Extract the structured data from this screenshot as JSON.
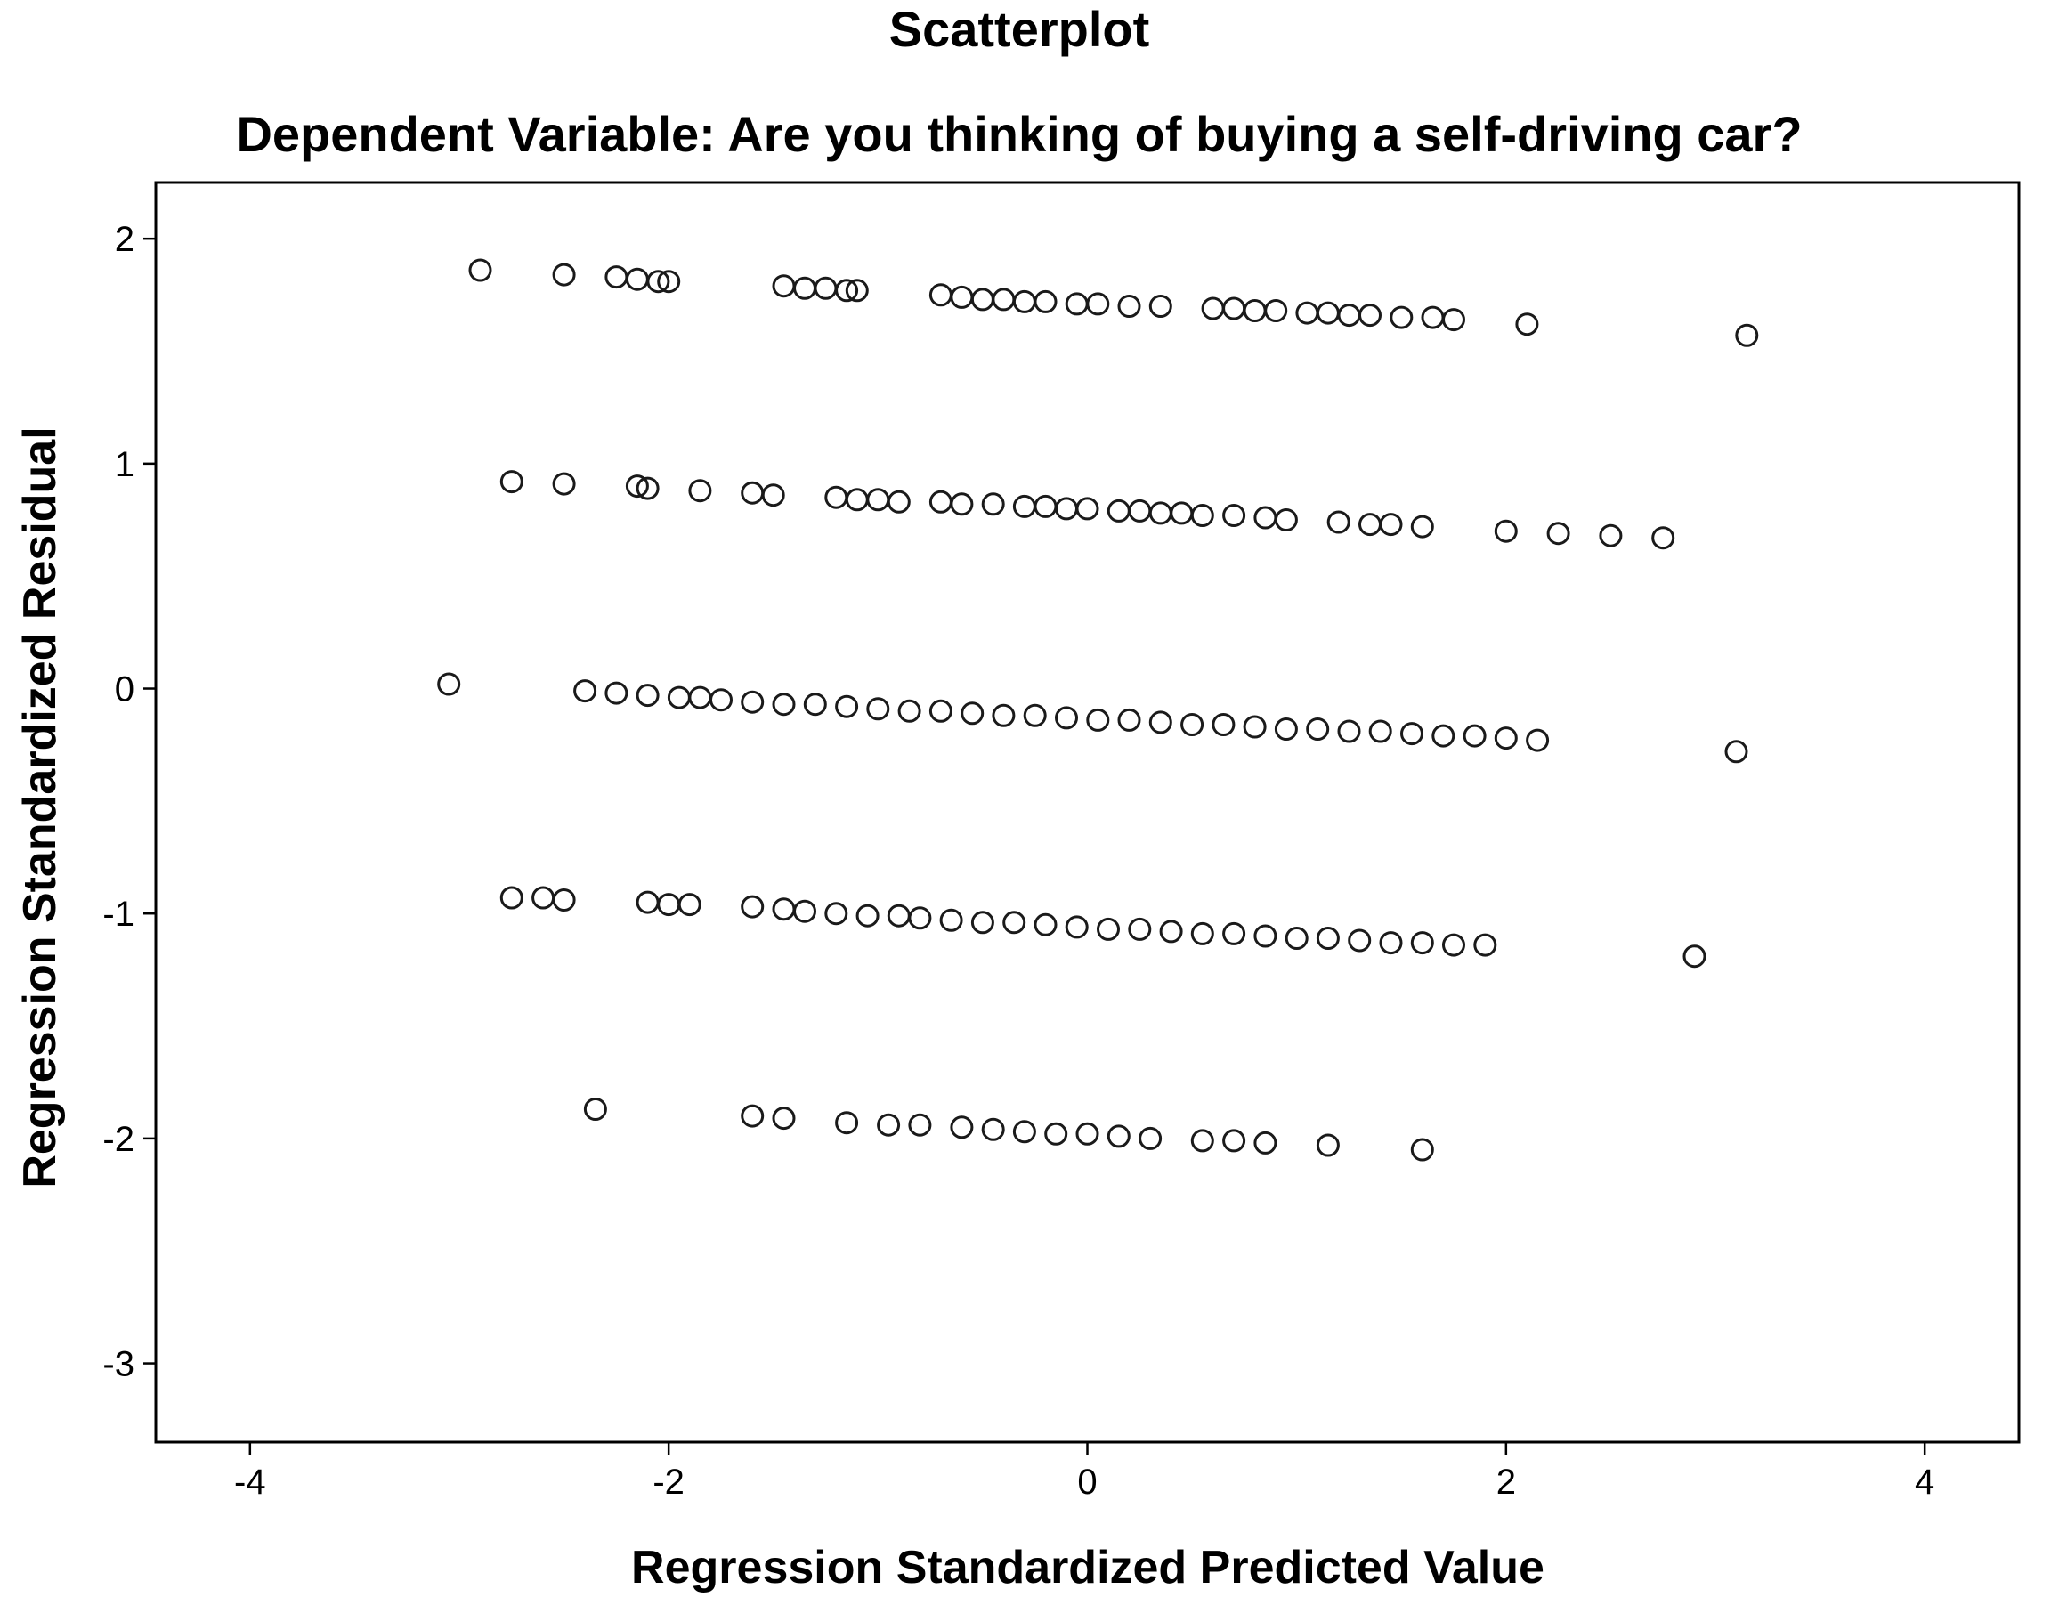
{
  "chart_data": {
    "type": "scatter",
    "title": "Scatterplot",
    "subtitle": "Dependent Variable: Are you thinking of buying a self-driving car?",
    "xlabel": "Regression Standardized Predicted Value",
    "ylabel": "Regression Standardized Residual",
    "xlim": [
      -4.45,
      4.45
    ],
    "ylim": [
      -3.35,
      2.25
    ],
    "xticks": [
      -4,
      -2,
      0,
      2,
      4
    ],
    "yticks": [
      2,
      1,
      0,
      -1,
      -2,
      -3
    ],
    "xtick_labels": [
      "-4",
      "-2",
      "0",
      "2",
      "4"
    ],
    "ytick_labels": [
      "2",
      "1",
      "0",
      "-1",
      "-2",
      "-3"
    ],
    "grid": false,
    "legend": "none",
    "marker": "hollow-circle",
    "marker_color": "#1a1a1a",
    "bands": [
      {
        "x": [
          -2.9,
          -2.5,
          -2.25,
          -2.15,
          -2.05,
          -2.0,
          -1.45,
          -1.35,
          -1.25,
          -1.15,
          -1.1,
          -0.7,
          -0.6,
          -0.5,
          -0.4,
          -0.3,
          -0.2,
          -0.05,
          0.05,
          0.2,
          0.35,
          0.6,
          0.7,
          0.8,
          0.9,
          1.05,
          1.15,
          1.25,
          1.35,
          1.5,
          1.65,
          1.75,
          2.1,
          3.15
        ],
        "y": [
          1.86,
          1.84,
          1.83,
          1.82,
          1.81,
          1.81,
          1.79,
          1.78,
          1.78,
          1.77,
          1.77,
          1.75,
          1.74,
          1.73,
          1.73,
          1.72,
          1.72,
          1.71,
          1.71,
          1.7,
          1.7,
          1.69,
          1.69,
          1.68,
          1.68,
          1.67,
          1.67,
          1.66,
          1.66,
          1.65,
          1.65,
          1.64,
          1.62,
          1.57
        ]
      },
      {
        "x": [
          -2.75,
          -2.5,
          -2.15,
          -2.1,
          -1.85,
          -1.6,
          -1.5,
          -1.2,
          -1.1,
          -1.0,
          -0.9,
          -0.7,
          -0.6,
          -0.45,
          -0.3,
          -0.2,
          -0.1,
          0.0,
          0.15,
          0.25,
          0.35,
          0.45,
          0.55,
          0.7,
          0.85,
          0.95,
          1.2,
          1.35,
          1.45,
          1.6,
          2.0,
          2.25,
          2.5,
          2.75
        ],
        "y": [
          0.92,
          0.91,
          0.9,
          0.89,
          0.88,
          0.87,
          0.86,
          0.85,
          0.84,
          0.84,
          0.83,
          0.83,
          0.82,
          0.82,
          0.81,
          0.81,
          0.8,
          0.8,
          0.79,
          0.79,
          0.78,
          0.78,
          0.77,
          0.77,
          0.76,
          0.75,
          0.74,
          0.73,
          0.73,
          0.72,
          0.7,
          0.69,
          0.68,
          0.67
        ]
      },
      {
        "x": [
          -3.05,
          -2.4,
          -2.25,
          -2.1,
          -1.95,
          -1.85,
          -1.75,
          -1.6,
          -1.45,
          -1.3,
          -1.15,
          -1.0,
          -0.85,
          -0.7,
          -0.55,
          -0.4,
          -0.25,
          -0.1,
          0.05,
          0.2,
          0.35,
          0.5,
          0.65,
          0.8,
          0.95,
          1.1,
          1.25,
          1.4,
          1.55,
          1.7,
          1.85,
          2.0,
          2.15,
          3.1
        ],
        "y": [
          0.02,
          -0.01,
          -0.02,
          -0.03,
          -0.04,
          -0.04,
          -0.05,
          -0.06,
          -0.07,
          -0.07,
          -0.08,
          -0.09,
          -0.1,
          -0.1,
          -0.11,
          -0.12,
          -0.12,
          -0.13,
          -0.14,
          -0.14,
          -0.15,
          -0.16,
          -0.16,
          -0.17,
          -0.18,
          -0.18,
          -0.19,
          -0.19,
          -0.2,
          -0.21,
          -0.21,
          -0.22,
          -0.23,
          -0.28
        ]
      },
      {
        "x": [
          -2.75,
          -2.6,
          -2.5,
          -2.1,
          -2.0,
          -1.9,
          -1.6,
          -1.45,
          -1.35,
          -1.2,
          -1.05,
          -0.9,
          -0.8,
          -0.65,
          -0.5,
          -0.35,
          -0.2,
          -0.05,
          0.1,
          0.25,
          0.4,
          0.55,
          0.7,
          0.85,
          1.0,
          1.15,
          1.3,
          1.45,
          1.6,
          1.75,
          1.9,
          2.9
        ],
        "y": [
          -0.93,
          -0.93,
          -0.94,
          -0.95,
          -0.96,
          -0.96,
          -0.97,
          -0.98,
          -0.99,
          -1.0,
          -1.01,
          -1.01,
          -1.02,
          -1.03,
          -1.04,
          -1.04,
          -1.05,
          -1.06,
          -1.07,
          -1.07,
          -1.08,
          -1.09,
          -1.09,
          -1.1,
          -1.11,
          -1.11,
          -1.12,
          -1.13,
          -1.13,
          -1.14,
          -1.14,
          -1.19
        ]
      },
      {
        "x": [
          -2.35,
          -1.6,
          -1.45,
          -1.15,
          -0.95,
          -0.8,
          -0.6,
          -0.45,
          -0.3,
          -0.15,
          0.0,
          0.15,
          0.3,
          0.55,
          0.7,
          0.85,
          1.15,
          1.6
        ],
        "y": [
          -1.87,
          -1.9,
          -1.91,
          -1.93,
          -1.94,
          -1.94,
          -1.95,
          -1.96,
          -1.97,
          -1.98,
          -1.98,
          -1.99,
          -2.0,
          -2.01,
          -2.01,
          -2.02,
          -2.03,
          -2.05
        ]
      }
    ]
  }
}
